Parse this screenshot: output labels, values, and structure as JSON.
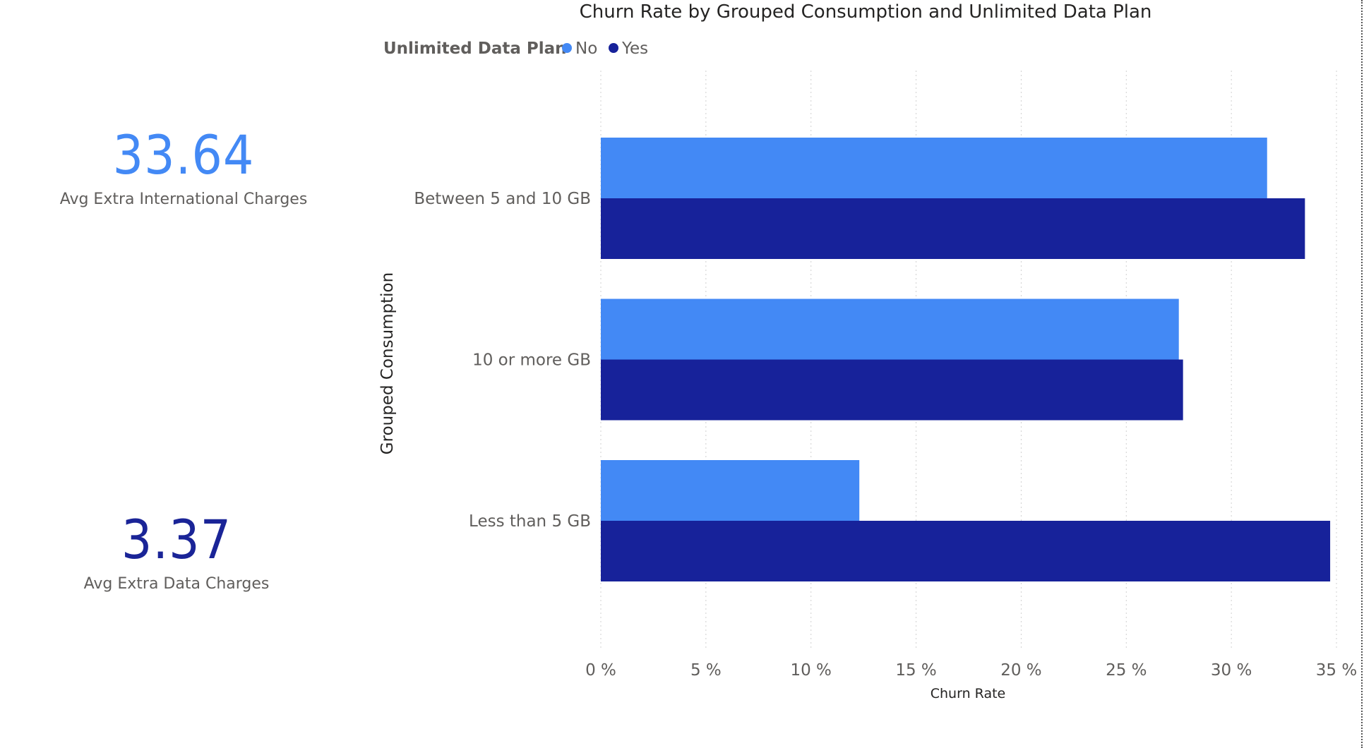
{
  "cards": [
    {
      "value": "33.64",
      "label": "Avg Extra International Charges",
      "color": "#4389f5"
    },
    {
      "value": "3.37",
      "label": "Avg Extra Data Charges",
      "color": "#1a2497"
    }
  ],
  "chart_data": {
    "type": "bar",
    "orientation": "horizontal",
    "title": "Churn Rate by Grouped Consumption and Unlimited Data Plan",
    "legend_title": "Unlimited Data Plan",
    "legend_position": "top-left",
    "categories": [
      "Between 5 and 10 GB",
      "10 or more GB",
      "Less than 5 GB"
    ],
    "series": [
      {
        "name": "No",
        "color": "#4389f5",
        "values": [
          31.7,
          27.5,
          12.3
        ]
      },
      {
        "name": "Yes",
        "color": "#17229a",
        "values": [
          33.5,
          27.7,
          34.7
        ]
      }
    ],
    "xlabel": "Churn Rate",
    "ylabel": "Grouped Consumption",
    "xlim": [
      0,
      35
    ],
    "ticks": [
      "0 %",
      "5 %",
      "10 %",
      "15 %",
      "20 %",
      "25 %",
      "30 %",
      "35 %"
    ],
    "tick_values": [
      0,
      5,
      10,
      15,
      20,
      25,
      30,
      35
    ],
    "grid": true
  }
}
